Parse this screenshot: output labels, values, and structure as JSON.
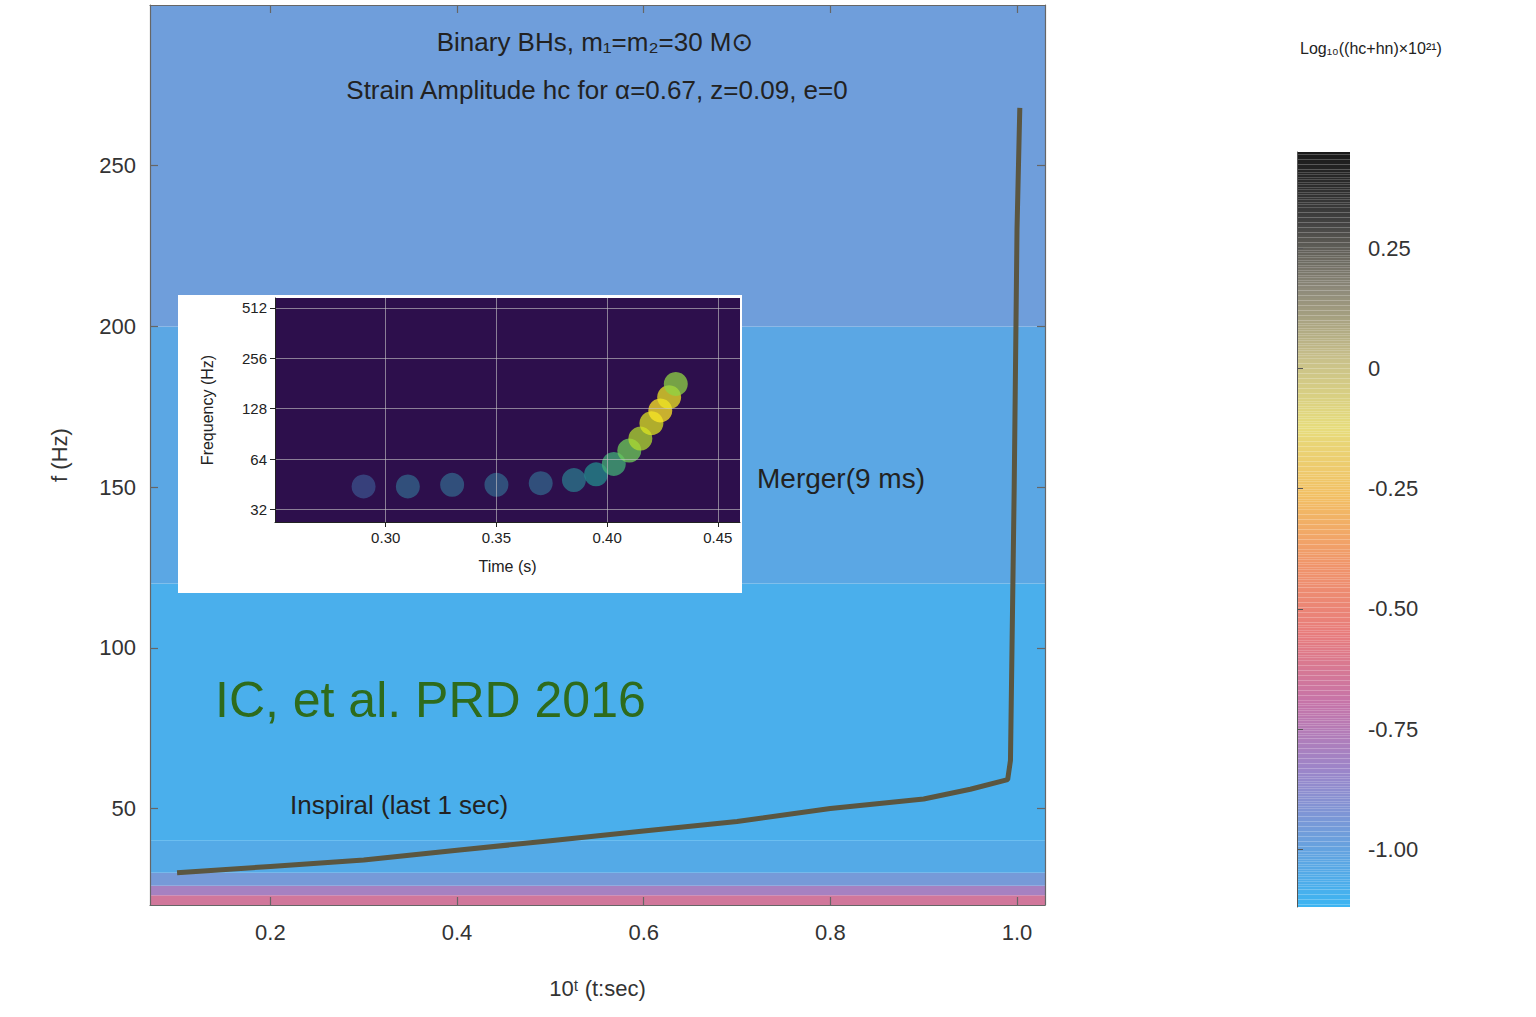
{
  "chart_data": [
    {
      "type": "line",
      "title": "Binary BHs, m₁=m₂=30 M⊙",
      "subtitle": "Strain Amplitude hc for α=0.67, z=0.09, e=0",
      "x_label": "10ᵗ (t:sec)",
      "y_label": "f (Hz)",
      "annotations": [
        {
          "text": "Merger(9 ms)"
        },
        {
          "text": "Inspiral (last 1 sec)"
        },
        {
          "text": "IC, et al. PRD 2016",
          "color": "#2e6b1c"
        }
      ],
      "xlim": [
        0.071,
        1.03
      ],
      "xticks": [
        0.2,
        0.4,
        0.6,
        0.8,
        {
          "value": 1,
          "label": "1.0"
        }
      ],
      "ylim": [
        20,
        300
      ],
      "yticks": [
        50,
        100,
        150,
        200,
        250
      ],
      "grid": false,
      "color": "#5b5640",
      "x": [
        0.1,
        0.2,
        0.3,
        0.4,
        0.5,
        0.6,
        0.7,
        0.8,
        0.9,
        0.95,
        0.99,
        0.993,
        0.997,
        1.0,
        1.003
      ],
      "values": [
        30,
        32,
        34,
        37,
        40,
        43,
        46,
        50,
        53,
        56,
        59,
        65,
        150,
        230,
        268
      ],
      "heatmap": {
        "f_edges": [
          20,
          23,
          26,
          30,
          40,
          120,
          200,
          300
        ],
        "values": [
          -0.65,
          -0.8,
          -0.95,
          -1.05,
          -1.08,
          -1.03,
          -0.97
        ]
      },
      "colorbar": {
        "title": "Log₁₀((hc+hn)×10²¹)",
        "range": [
          -1.12,
          0.45
        ],
        "ticks": [
          {
            "value": -1,
            "label": "-1.00"
          },
          -0.75,
          {
            "value": -0.5,
            "label": "-0.50"
          },
          -0.25,
          0,
          0.25
        ],
        "colors": [
          "#3cb5f2",
          "#6d9fdc",
          "#9c85c9",
          "#c774a8",
          "#e87d7c",
          "#f0956a",
          "#f2c064",
          "#e6dc7c",
          "#c8c08a",
          "#8e8a7a",
          "#404040",
          "#1a1a1a"
        ]
      }
    },
    {
      "type": "scatter",
      "x_label": "Time (s)",
      "y_label": "Frequency (Hz)",
      "log": "y",
      "grid": true,
      "xlim": [
        0.25,
        0.46
      ],
      "xticks": [
        {
          "value": 0.3,
          "label": "0.30"
        },
        0.35,
        {
          "value": 0.4,
          "label": "0.40"
        },
        0.45
      ],
      "ylim": [
        27,
        586
      ],
      "yticks": [
        32,
        64,
        128,
        256,
        512
      ],
      "x": [
        0.29,
        0.31,
        0.33,
        0.35,
        0.37,
        0.385,
        0.395,
        0.403,
        0.41,
        0.415,
        0.42,
        0.424,
        0.428,
        0.431
      ],
      "values": [
        44,
        44,
        45,
        45,
        46,
        48,
        52,
        60,
        72,
        85,
        105,
        125,
        150,
        180
      ],
      "power": [
        0.35,
        0.4,
        0.4,
        0.4,
        0.4,
        0.45,
        0.5,
        0.6,
        0.7,
        0.8,
        0.9,
        1.0,
        0.95,
        0.75
      ]
    }
  ]
}
